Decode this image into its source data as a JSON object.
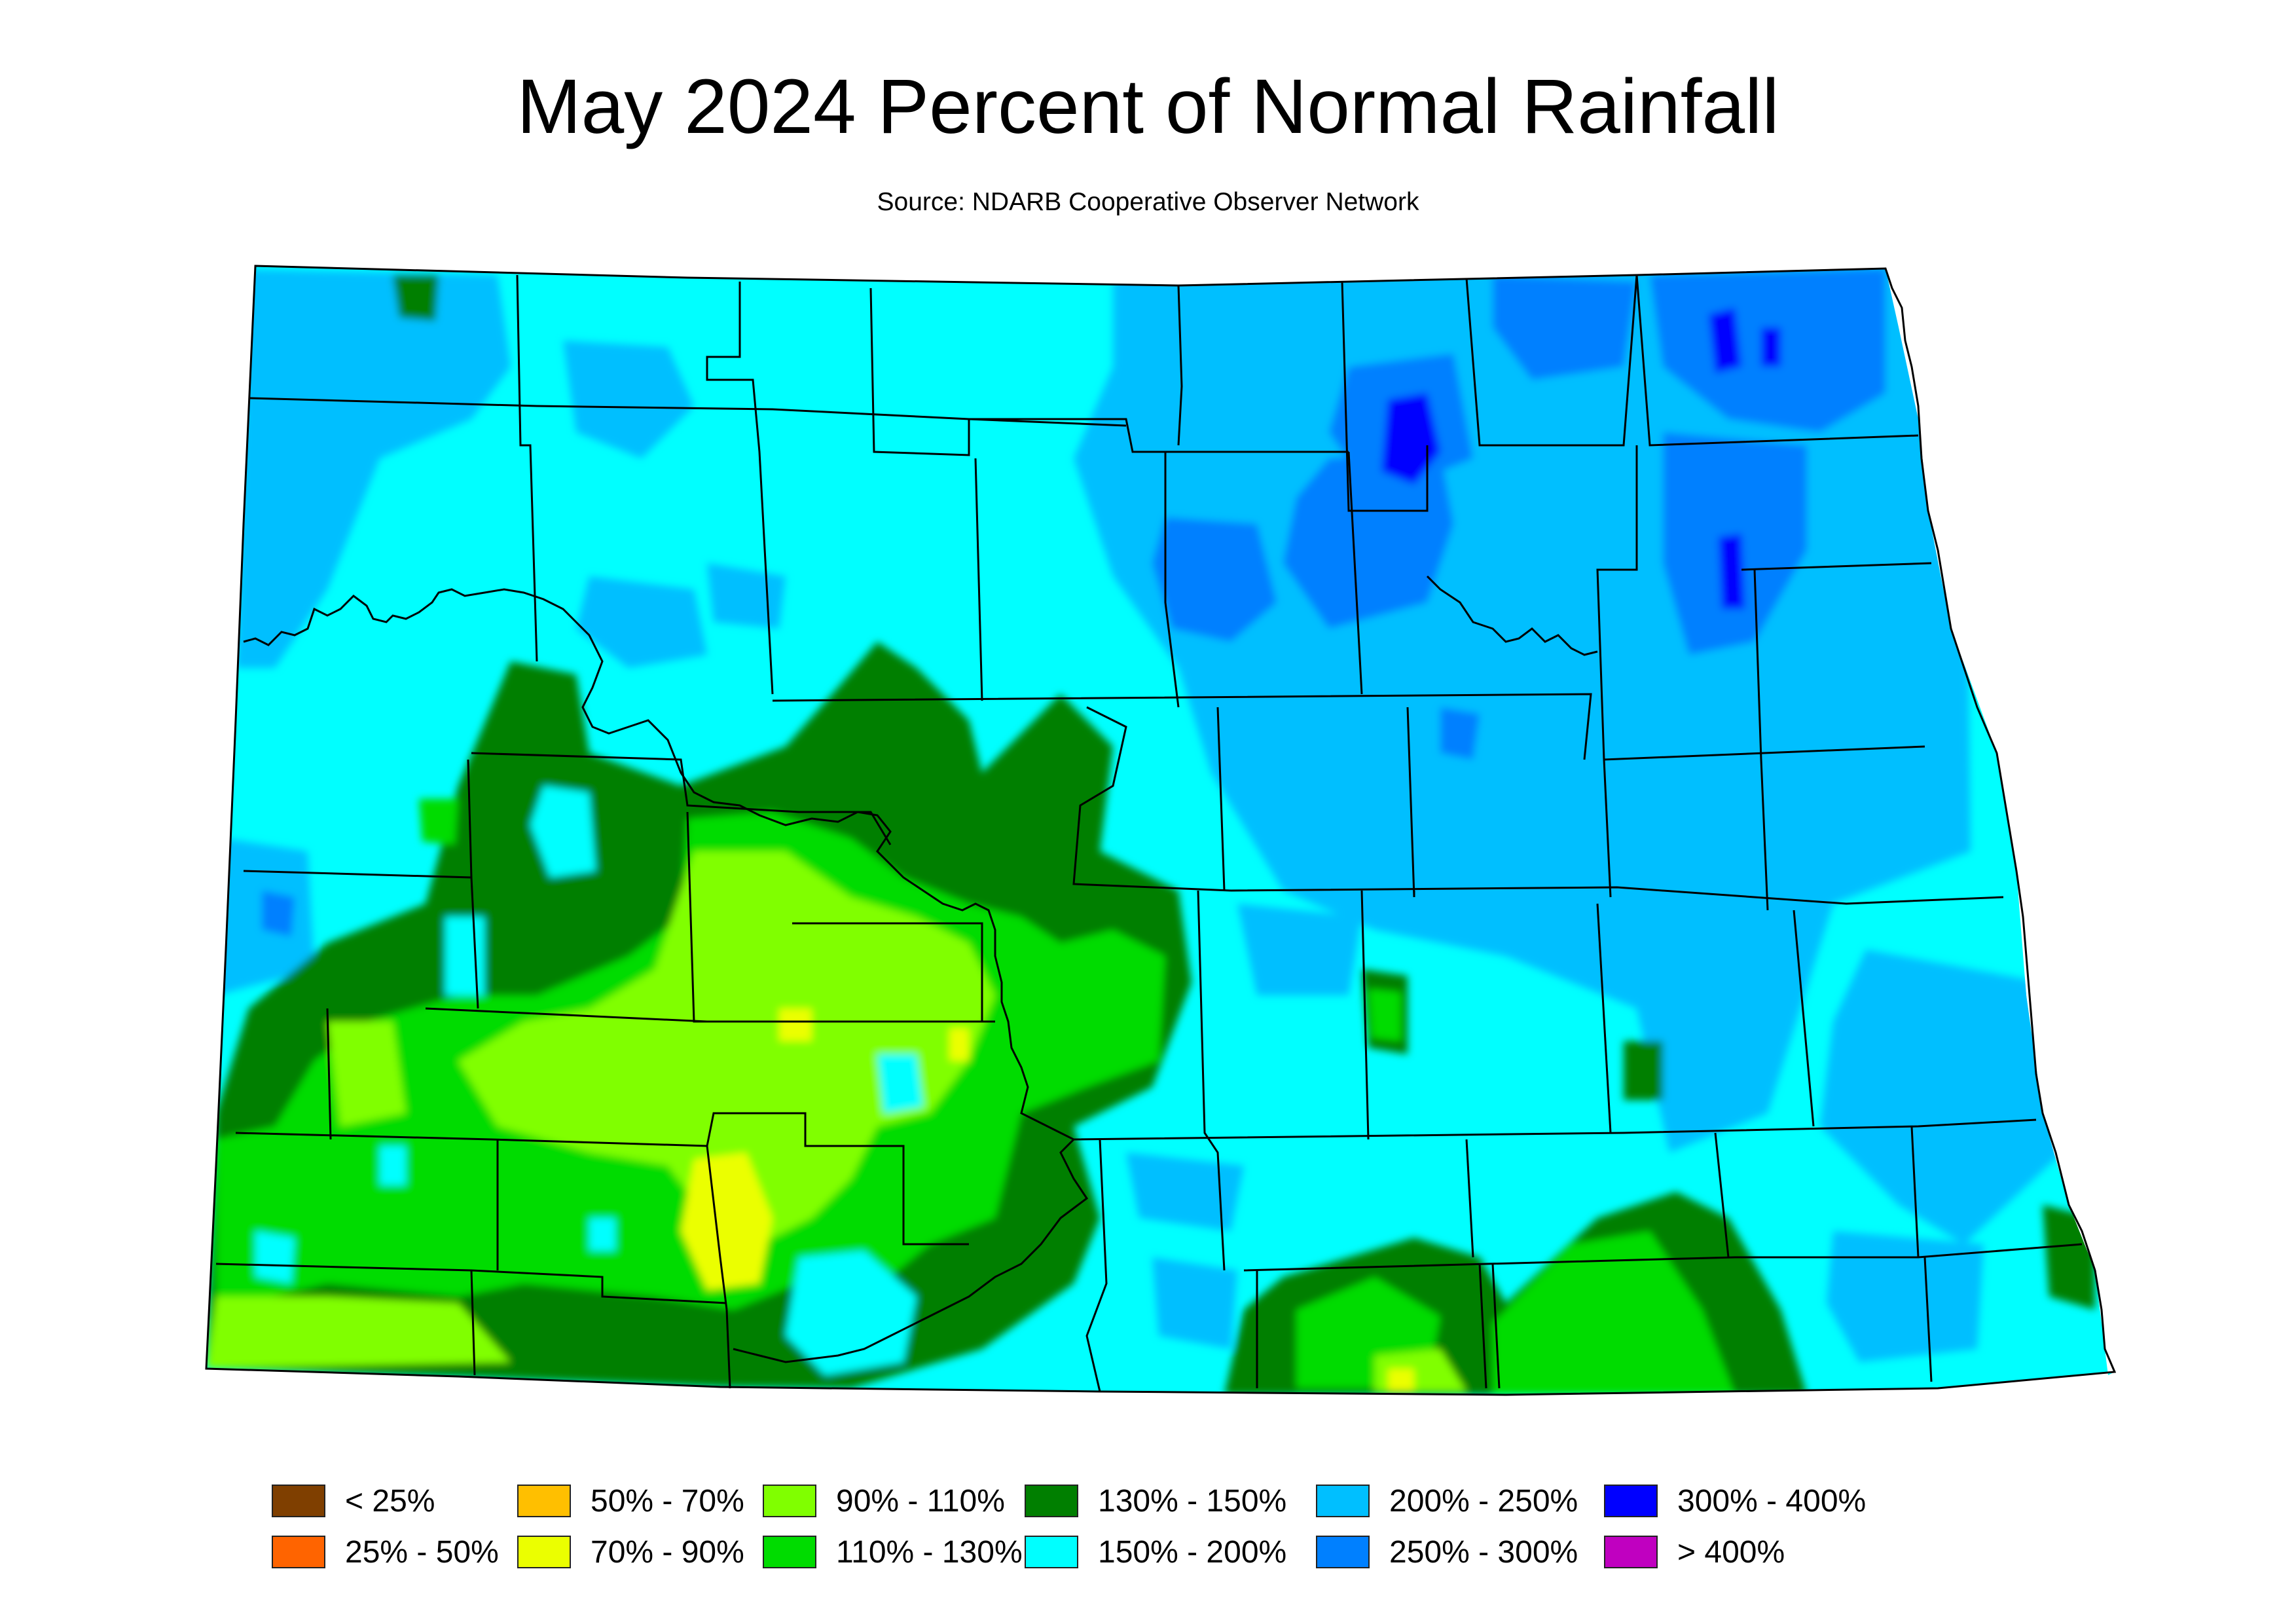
{
  "title": "May 2024 Percent of Normal Rainfall",
  "subtitle": "Source: NDARB Cooperative Observer Network",
  "legend": [
    {
      "label": "< 25%",
      "color": "#7f3f00"
    },
    {
      "label": "25% - 50%",
      "color": "#ff6400"
    },
    {
      "label": "50% - 70%",
      "color": "#ffbf00"
    },
    {
      "label": "70% - 90%",
      "color": "#ebff00"
    },
    {
      "label": "90% - 110%",
      "color": "#80ff00"
    },
    {
      "label": "110% - 130%",
      "color": "#00dc00"
    },
    {
      "label": "130% - 150%",
      "color": "#007f00"
    },
    {
      "label": "150% - 200%",
      "color": "#00ffff"
    },
    {
      "label": "200% - 250%",
      "color": "#00bfff"
    },
    {
      "label": "250% - 300%",
      "color": "#0080ff"
    },
    {
      "label": "300% - 400%",
      "color": "#0000ff"
    },
    {
      "label": "> 400%",
      "color": "#c000c0"
    }
  ]
}
